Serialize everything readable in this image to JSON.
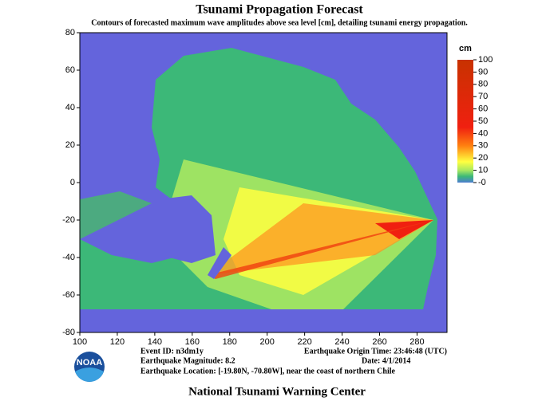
{
  "header": {
    "title": "Tsunami Propagation Forecast",
    "subtitle": "Contours of forecasted maximum wave amplitudes above sea level [cm], detailing tsunami energy propagation."
  },
  "map": {
    "xlim": [
      100,
      296
    ],
    "ylim": [
      -80,
      80
    ],
    "xticks": [
      100,
      120,
      140,
      160,
      180,
      200,
      220,
      240,
      260,
      280
    ],
    "yticks": [
      80,
      60,
      40,
      20,
      0,
      -20,
      -40,
      -60,
      -80
    ]
  },
  "colorbar": {
    "unit": "cm",
    "lim": [
      0,
      100
    ],
    "ticks": [
      {
        "value": 0,
        "label": "-0"
      },
      10,
      20,
      30,
      40,
      50,
      60,
      70,
      80,
      90,
      100
    ]
  },
  "event": {
    "id": "Event ID: n3dm1y",
    "magnitude": "Earthquake Magnitude: 8.2",
    "location": "Earthquake Location: [-19.80N, -70.80W], near the coast of northern Chile",
    "time": "Earthquake Origin Time: 23:46:48 (UTC)",
    "date": "Date: 4/1/2014"
  },
  "logo": "NOAA",
  "footer": "National Tsunami Warning Center"
}
